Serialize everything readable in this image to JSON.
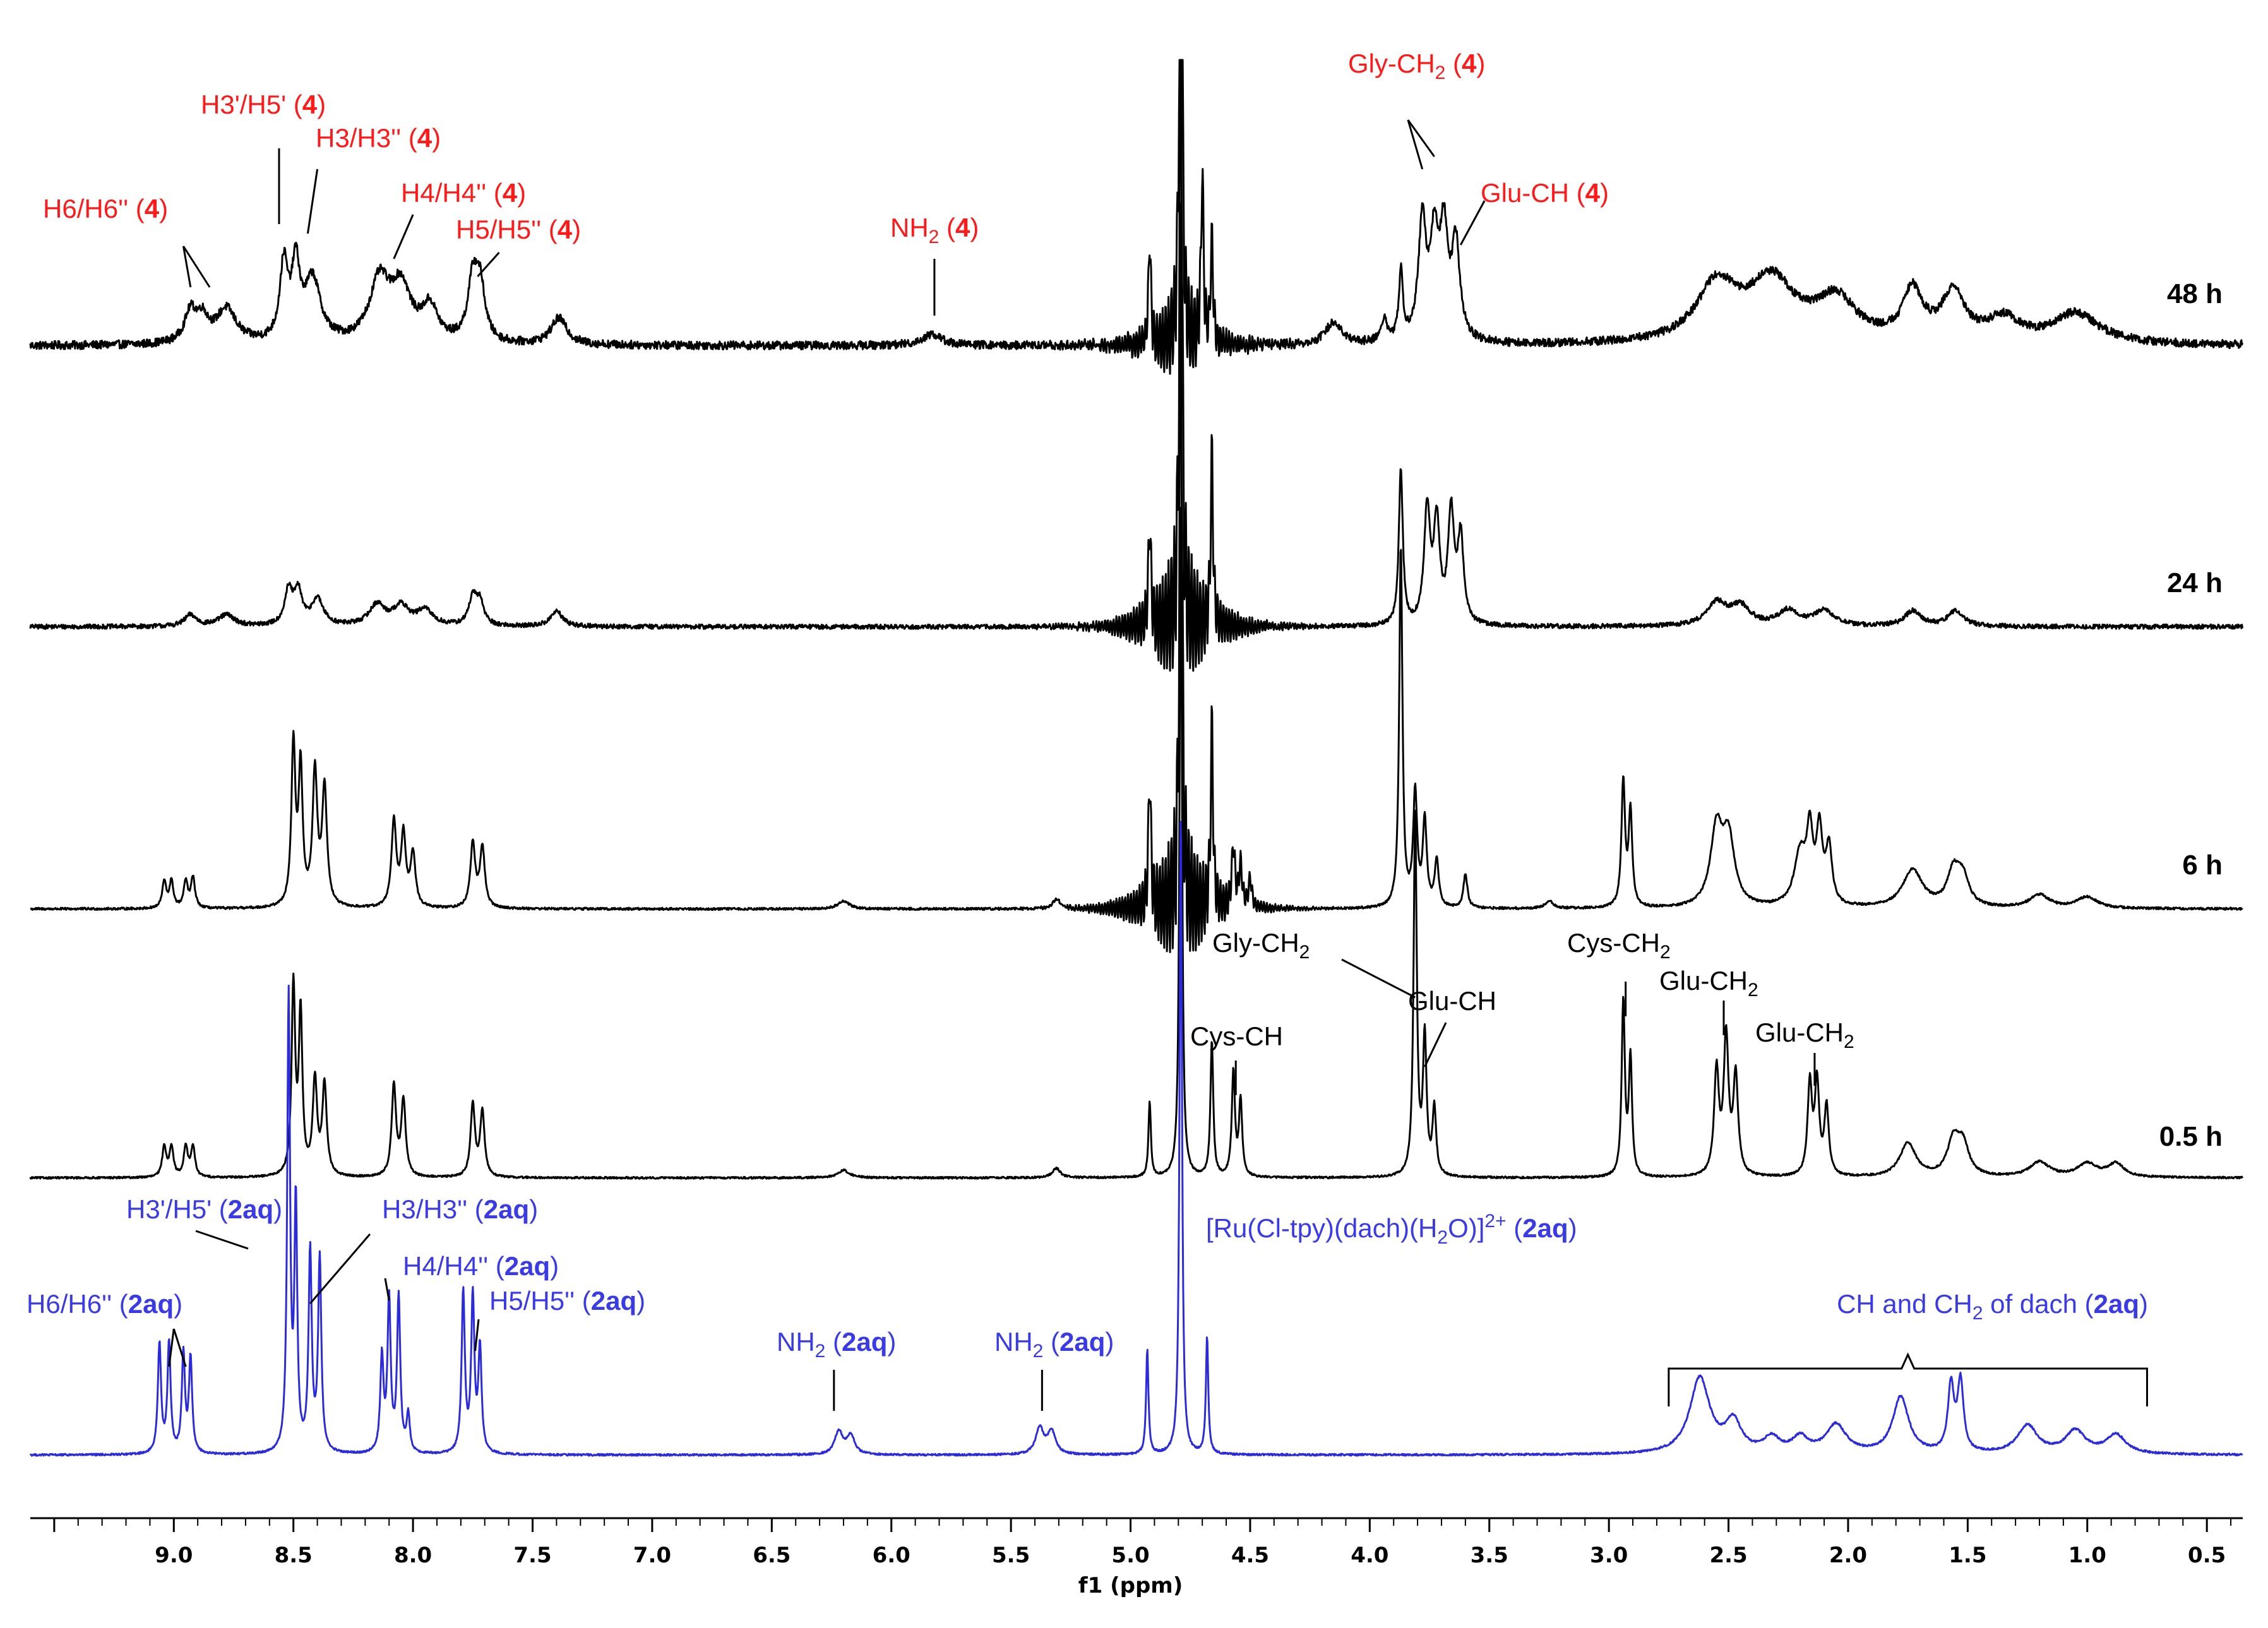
{
  "colors": {
    "black_trace": "#000000",
    "blue_trace": "#2b2bdb",
    "red_label": "#ff1a1a",
    "blue_label": "#3a3ae6"
  },
  "chart_data": {
    "type": "line",
    "chart_kind": "stacked 1H NMR spectra",
    "xlabel": "f1 (ppm)",
    "x_axis_reversed": true,
    "xlim": [
      9.6,
      0.35
    ],
    "x_ticks": [
      9.0,
      8.5,
      8.0,
      7.5,
      7.0,
      6.5,
      6.0,
      5.5,
      5.0,
      4.5,
      4.0,
      3.5,
      3.0,
      2.5,
      2.0,
      1.5,
      1.0,
      0.5
    ],
    "x_tick_labels": [
      "9.0",
      "8.5",
      "8.0",
      "7.5",
      "7.0",
      "6.5",
      "6.0",
      "5.5",
      "5.0",
      "4.5",
      "4.0",
      "3.5",
      "3.0",
      "2.5",
      "2.0",
      "1.5",
      "1.0",
      "0.5"
    ],
    "series": [
      {
        "name": "48 h",
        "color": "#000000",
        "baseline": 0.0,
        "noise": 0.022,
        "tilt": 0.04,
        "peaks": [
          [
            8.93,
            0.16,
            0.03
          ],
          [
            8.88,
            0.12,
            0.03
          ],
          [
            8.78,
            0.18,
            0.05
          ],
          [
            8.54,
            0.4,
            0.02
          ],
          [
            8.49,
            0.38,
            0.02
          ],
          [
            8.42,
            0.33,
            0.04
          ],
          [
            8.14,
            0.32,
            0.05
          ],
          [
            8.05,
            0.28,
            0.05
          ],
          [
            7.93,
            0.18,
            0.04
          ],
          [
            7.75,
            0.3,
            0.025
          ],
          [
            7.72,
            0.28,
            0.025
          ],
          [
            7.39,
            0.14,
            0.04
          ],
          [
            5.83,
            0.06,
            0.05
          ],
          [
            4.92,
            0.55,
            0.006
          ],
          [
            4.7,
            0.9,
            0.006
          ],
          [
            4.66,
            0.55,
            0.006
          ],
          [
            4.15,
            0.12,
            0.04
          ],
          [
            3.94,
            0.12,
            0.015
          ],
          [
            3.87,
            0.36,
            0.01
          ],
          [
            3.78,
            0.62,
            0.02
          ],
          [
            3.73,
            0.5,
            0.02
          ],
          [
            3.69,
            0.55,
            0.02
          ],
          [
            3.64,
            0.5,
            0.02
          ],
          [
            2.55,
            0.3,
            0.1
          ],
          [
            2.32,
            0.32,
            0.12
          ],
          [
            2.05,
            0.22,
            0.1
          ],
          [
            1.73,
            0.26,
            0.05
          ],
          [
            1.56,
            0.25,
            0.06
          ],
          [
            1.35,
            0.12,
            0.08
          ],
          [
            1.05,
            0.16,
            0.12
          ]
        ]
      },
      {
        "name": "24 h",
        "color": "#000000",
        "baseline": 0.0,
        "noise": 0.012,
        "tilt": 0.0,
        "peaks": [
          [
            8.93,
            0.06,
            0.03
          ],
          [
            8.78,
            0.06,
            0.04
          ],
          [
            8.52,
            0.18,
            0.02
          ],
          [
            8.48,
            0.17,
            0.02
          ],
          [
            8.4,
            0.14,
            0.03
          ],
          [
            8.15,
            0.11,
            0.04
          ],
          [
            8.05,
            0.1,
            0.04
          ],
          [
            7.95,
            0.08,
            0.04
          ],
          [
            7.75,
            0.14,
            0.02
          ],
          [
            7.72,
            0.12,
            0.02
          ],
          [
            7.4,
            0.08,
            0.03
          ],
          [
            4.92,
            0.55,
            0.006
          ],
          [
            4.66,
            0.9,
            0.006
          ],
          [
            3.87,
            0.82,
            0.01
          ],
          [
            3.76,
            0.6,
            0.015
          ],
          [
            3.72,
            0.52,
            0.015
          ],
          [
            3.66,
            0.58,
            0.015
          ],
          [
            3.62,
            0.45,
            0.015
          ],
          [
            2.55,
            0.12,
            0.05
          ],
          [
            2.45,
            0.1,
            0.05
          ],
          [
            2.25,
            0.08,
            0.05
          ],
          [
            2.1,
            0.08,
            0.05
          ],
          [
            1.73,
            0.08,
            0.04
          ],
          [
            1.55,
            0.08,
            0.04
          ]
        ]
      },
      {
        "name": "6 h",
        "color": "#000000",
        "baseline": 0.0,
        "noise": 0.006,
        "tilt": 0.0,
        "peaks": [
          [
            9.04,
            0.14,
            0.01
          ],
          [
            9.01,
            0.14,
            0.01
          ],
          [
            8.95,
            0.14,
            0.01
          ],
          [
            8.92,
            0.16,
            0.01
          ],
          [
            8.5,
            0.85,
            0.01
          ],
          [
            8.47,
            0.72,
            0.01
          ],
          [
            8.41,
            0.7,
            0.012
          ],
          [
            8.37,
            0.62,
            0.012
          ],
          [
            8.08,
            0.45,
            0.012
          ],
          [
            8.04,
            0.38,
            0.012
          ],
          [
            8.0,
            0.28,
            0.012
          ],
          [
            7.75,
            0.34,
            0.012
          ],
          [
            7.71,
            0.32,
            0.012
          ],
          [
            6.2,
            0.04,
            0.03
          ],
          [
            5.31,
            0.05,
            0.02
          ],
          [
            4.92,
            0.7,
            0.006
          ],
          [
            4.66,
            0.95,
            0.006
          ],
          [
            4.57,
            0.32,
            0.008
          ],
          [
            4.54,
            0.22,
            0.008
          ],
          [
            4.5,
            0.15,
            0.008
          ],
          [
            3.87,
            1.9,
            0.008
          ],
          [
            3.81,
            0.6,
            0.01
          ],
          [
            3.77,
            0.45,
            0.01
          ],
          [
            3.72,
            0.25,
            0.01
          ],
          [
            3.6,
            0.18,
            0.01
          ],
          [
            3.25,
            0.04,
            0.02
          ],
          [
            2.94,
            0.66,
            0.009
          ],
          [
            2.91,
            0.5,
            0.009
          ],
          [
            2.55,
            0.4,
            0.03
          ],
          [
            2.5,
            0.35,
            0.03
          ],
          [
            2.2,
            0.28,
            0.03
          ],
          [
            2.16,
            0.35,
            0.015
          ],
          [
            2.12,
            0.38,
            0.015
          ],
          [
            2.08,
            0.3,
            0.015
          ],
          [
            1.73,
            0.2,
            0.05
          ],
          [
            1.56,
            0.18,
            0.03
          ],
          [
            1.52,
            0.15,
            0.03
          ],
          [
            1.2,
            0.07,
            0.05
          ],
          [
            1.0,
            0.06,
            0.05
          ]
        ]
      },
      {
        "name": "0.5 h",
        "color": "#000000",
        "baseline": 0.0,
        "noise": 0.005,
        "tilt": 0.0,
        "peaks": [
          [
            9.04,
            0.16,
            0.01
          ],
          [
            9.01,
            0.16,
            0.01
          ],
          [
            8.95,
            0.16,
            0.01
          ],
          [
            8.92,
            0.16,
            0.01
          ],
          [
            8.5,
            1.0,
            0.009
          ],
          [
            8.47,
            0.85,
            0.009
          ],
          [
            8.41,
            0.5,
            0.011
          ],
          [
            8.37,
            0.48,
            0.011
          ],
          [
            8.08,
            0.48,
            0.011
          ],
          [
            8.04,
            0.4,
            0.011
          ],
          [
            7.75,
            0.38,
            0.011
          ],
          [
            7.71,
            0.34,
            0.011
          ],
          [
            6.2,
            0.04,
            0.03
          ],
          [
            5.31,
            0.05,
            0.02
          ],
          [
            4.92,
            0.4,
            0.006
          ],
          [
            4.66,
            0.72,
            0.007
          ],
          [
            4.57,
            0.55,
            0.008
          ],
          [
            4.54,
            0.4,
            0.008
          ],
          [
            3.81,
            1.9,
            0.008
          ],
          [
            3.77,
            0.72,
            0.009
          ],
          [
            3.73,
            0.35,
            0.009
          ],
          [
            2.94,
            0.92,
            0.008
          ],
          [
            2.91,
            0.62,
            0.008
          ],
          [
            2.55,
            0.55,
            0.012
          ],
          [
            2.51,
            0.72,
            0.012
          ],
          [
            2.47,
            0.52,
            0.012
          ],
          [
            2.16,
            0.48,
            0.011
          ],
          [
            2.13,
            0.48,
            0.011
          ],
          [
            2.09,
            0.36,
            0.011
          ],
          [
            1.75,
            0.18,
            0.04
          ],
          [
            1.56,
            0.18,
            0.03
          ],
          [
            1.52,
            0.16,
            0.03
          ],
          [
            1.2,
            0.08,
            0.05
          ],
          [
            1.0,
            0.07,
            0.05
          ],
          [
            0.88,
            0.07,
            0.04
          ]
        ]
      },
      {
        "name": "2aq",
        "color": "#2b2bdb",
        "baseline": 0.0,
        "noise": 0.005,
        "tilt": 0.0,
        "peaks": [
          [
            9.06,
            0.58,
            0.008
          ],
          [
            9.02,
            0.58,
            0.008
          ],
          [
            8.96,
            0.52,
            0.008
          ],
          [
            8.93,
            0.5,
            0.008
          ],
          [
            8.52,
            2.4,
            0.007
          ],
          [
            8.49,
            1.3,
            0.007
          ],
          [
            8.43,
            1.05,
            0.008
          ],
          [
            8.39,
            1.02,
            0.008
          ],
          [
            8.13,
            0.5,
            0.008
          ],
          [
            8.1,
            0.8,
            0.008
          ],
          [
            8.06,
            0.82,
            0.008
          ],
          [
            8.02,
            0.2,
            0.008
          ],
          [
            7.79,
            0.85,
            0.008
          ],
          [
            7.75,
            0.82,
            0.008
          ],
          [
            7.72,
            0.55,
            0.008
          ],
          [
            6.22,
            0.12,
            0.02
          ],
          [
            6.17,
            0.1,
            0.02
          ],
          [
            5.38,
            0.14,
            0.02
          ],
          [
            5.33,
            0.12,
            0.02
          ],
          [
            4.93,
            0.55,
            0.006
          ],
          [
            4.68,
            0.62,
            0.006
          ],
          [
            2.62,
            0.4,
            0.05
          ],
          [
            2.48,
            0.16,
            0.04
          ],
          [
            2.32,
            0.08,
            0.04
          ],
          [
            2.2,
            0.08,
            0.04
          ],
          [
            2.05,
            0.15,
            0.05
          ],
          [
            1.78,
            0.3,
            0.04
          ],
          [
            1.57,
            0.35,
            0.015
          ],
          [
            1.53,
            0.37,
            0.015
          ],
          [
            1.25,
            0.15,
            0.05
          ],
          [
            1.05,
            0.12,
            0.05
          ],
          [
            0.88,
            0.1,
            0.05
          ]
        ]
      }
    ],
    "trace_labels": [
      "48 h",
      "24 h",
      "6 h",
      "0.5 h"
    ],
    "annotations_red": [
      {
        "pre": "H6/H6'' (",
        "bold": "4",
        "post": ")"
      },
      {
        "pre": "H3'/H5' (",
        "bold": "4",
        "post": ")"
      },
      {
        "pre": "H3/H3'' (",
        "bold": "4",
        "post": ")"
      },
      {
        "pre": "H4/H4'' (",
        "bold": "4",
        "post": ")"
      },
      {
        "pre": "H5/H5'' (",
        "bold": "4",
        "post": ")"
      },
      {
        "pre": "NH",
        "sub": "2",
        "post2": " (",
        "bold": "4",
        "post": ")"
      },
      {
        "pre": "Gly-CH",
        "sub": "2",
        "post2": " (",
        "bold": "4",
        "post": ")"
      },
      {
        "pre": "Glu-CH (",
        "bold": "4",
        "post": ")"
      }
    ],
    "annotations_black": [
      {
        "pre": "Gly-CH",
        "sub": "2"
      },
      {
        "pre": "Glu-CH"
      },
      {
        "pre": "Cys-CH"
      },
      {
        "pre": "Cys-CH",
        "sub": "2"
      },
      {
        "pre": "Glu-CH",
        "sub": "2"
      },
      {
        "pre": "Glu-CH",
        "sub": "2"
      }
    ],
    "annotations_blue": [
      {
        "pre": "H3'/H5' (",
        "bold": "2aq",
        "post": ")"
      },
      {
        "pre": "H3/H3'' (",
        "bold": "2aq",
        "post": ")"
      },
      {
        "pre": "H4/H4'' (",
        "bold": "2aq",
        "post": ")"
      },
      {
        "pre": "H5/H5'' (",
        "bold": "2aq",
        "post": ")"
      },
      {
        "pre": "H6/H6'' (",
        "bold": "2aq",
        "post": ")"
      },
      {
        "pre": "NH",
        "sub": "2",
        "post2": " (",
        "bold": "2aq",
        "post": ")"
      },
      {
        "pre": "NH",
        "sub": "2",
        "post2": " (",
        "bold": "2aq",
        "post": ")"
      },
      {
        "pre": "CH and CH",
        "sub": "2",
        "post2": " of dach (",
        "bold": "2aq",
        "post": ")"
      },
      {
        "complex": [
          "[Ru(Cl-tpy)(dach)(H",
          "2",
          "O)]",
          "2+",
          " (",
          "2aq",
          ")"
        ]
      }
    ]
  }
}
